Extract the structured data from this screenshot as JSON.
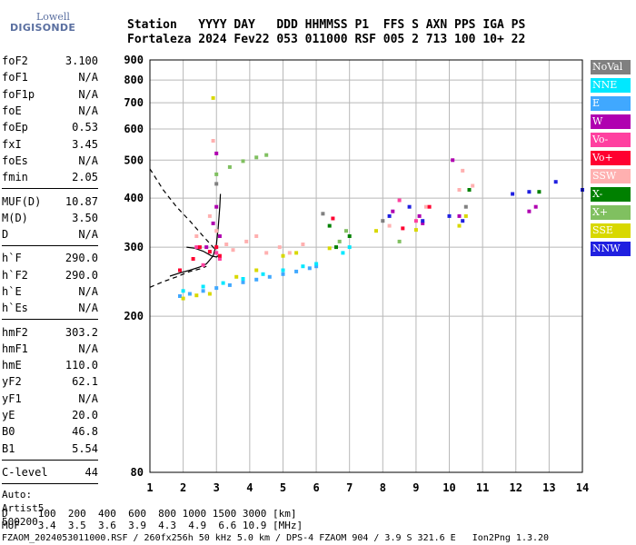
{
  "logo": {
    "line1": "Lowell",
    "line2": "DIGISONDE"
  },
  "header": {
    "labels": "Station   YYYY DAY   DDD HHMMSS P1  FFS S AXN PPS IGA PS",
    "values": "Fortaleza 2024 Fev22 053 011000 RSF 005 2 713 100 10+ 22"
  },
  "params": {
    "group1": [
      {
        "name": "foF2",
        "value": "3.100"
      },
      {
        "name": "foF1",
        "value": "N/A"
      },
      {
        "name": "foF1p",
        "value": "N/A"
      },
      {
        "name": "foE",
        "value": "N/A"
      },
      {
        "name": "foEp",
        "value": "0.53"
      },
      {
        "name": "fxI",
        "value": "3.45"
      },
      {
        "name": "foEs",
        "value": "N/A"
      },
      {
        "name": "fmin",
        "value": "2.05"
      }
    ],
    "group2": [
      {
        "name": "MUF(D)",
        "value": "10.87"
      },
      {
        "name": "M(D)",
        "value": "3.50"
      },
      {
        "name": "D",
        "value": "N/A"
      }
    ],
    "group3": [
      {
        "name": "h`F",
        "value": "290.0"
      },
      {
        "name": "h`F2",
        "value": "290.0"
      },
      {
        "name": "h`E",
        "value": "N/A"
      },
      {
        "name": "h`Es",
        "value": "N/A"
      }
    ],
    "group4": [
      {
        "name": "hmF2",
        "value": "303.2"
      },
      {
        "name": "hmF1",
        "value": "N/A"
      },
      {
        "name": "hmE",
        "value": "110.0"
      },
      {
        "name": "yF2",
        "value": "62.1"
      },
      {
        "name": "yF1",
        "value": "N/A"
      },
      {
        "name": "yE",
        "value": "20.0"
      },
      {
        "name": "B0",
        "value": "46.8"
      },
      {
        "name": "B1",
        "value": "5.54"
      }
    ],
    "clevel": {
      "name": "C-level",
      "value": "44"
    },
    "auto": [
      "Auto:",
      "Artist5",
      "500200"
    ]
  },
  "legend": [
    {
      "label": "NoVal",
      "color": "#808080"
    },
    {
      "label": "NNE",
      "color": "#00e8ff"
    },
    {
      "label": "E",
      "color": "#40a8ff"
    },
    {
      "label": "W",
      "color": "#b000b0"
    },
    {
      "label": "Vo-",
      "color": "#ff40a0"
    },
    {
      "label": "Vo+",
      "color": "#ff0030"
    },
    {
      "label": "SSW",
      "color": "#ffb0b0"
    },
    {
      "label": "X-",
      "color": "#008000"
    },
    {
      "label": "X+",
      "color": "#80c060"
    },
    {
      "label": "SSE",
      "color": "#d8d800"
    },
    {
      "label": "NNW",
      "color": "#2020e0"
    }
  ],
  "bottom": {
    "line1": "D     100  200  400  600  800 1000 1500 3000 [km]",
    "line2": "MUF   3.4  3.5  3.6  3.9  4.3  4.9  6.6 10.9 [MHz]",
    "line3": "FZAOM_2024053011000.RSF / 260fx256h 50 kHz 5.0 km / DPS-4 FZAOM 904 / 3.9 S 321.6 E   Ion2Png 1.3.20"
  },
  "chart_data": {
    "type": "scatter",
    "xlim": [
      1,
      14
    ],
    "ylim": [
      80,
      900
    ],
    "x_ticks": [
      1,
      2,
      3,
      4,
      5,
      6,
      7,
      8,
      9,
      10,
      11,
      12,
      13,
      14
    ],
    "y_ticks": [
      80,
      200,
      300,
      400,
      500,
      600,
      700,
      800,
      900
    ],
    "y_scale": "log",
    "grid": true,
    "legend_position": "right",
    "series": [
      {
        "key": "E",
        "points": [
          [
            1.9,
            225
          ],
          [
            2.2,
            228
          ],
          [
            2.6,
            232
          ],
          [
            3.0,
            236
          ],
          [
            3.4,
            240
          ],
          [
            3.8,
            244
          ],
          [
            4.2,
            248
          ],
          [
            4.6,
            252
          ],
          [
            5.0,
            256
          ],
          [
            5.4,
            260
          ],
          [
            5.8,
            265
          ],
          [
            6.0,
            268
          ]
        ]
      },
      {
        "key": "NNE",
        "points": [
          [
            2.0,
            232
          ],
          [
            2.6,
            238
          ],
          [
            3.2,
            243
          ],
          [
            3.8,
            249
          ],
          [
            4.4,
            256
          ],
          [
            5.0,
            262
          ],
          [
            5.6,
            268
          ],
          [
            6.0,
            272
          ],
          [
            6.8,
            290
          ],
          [
            7.0,
            300
          ]
        ]
      },
      {
        "key": "SSE",
        "points": [
          [
            2.0,
            222
          ],
          [
            2.4,
            226
          ],
          [
            2.8,
            228
          ],
          [
            3.6,
            252
          ],
          [
            4.2,
            262
          ],
          [
            5.0,
            285
          ],
          [
            5.4,
            290
          ],
          [
            6.4,
            298
          ],
          [
            7.8,
            330
          ],
          [
            9.0,
            332
          ],
          [
            10.3,
            340
          ],
          [
            10.5,
            360
          ]
        ]
      },
      {
        "key": "SSW",
        "points": [
          [
            2.4,
            320
          ],
          [
            2.8,
            360
          ],
          [
            3.0,
            330
          ],
          [
            3.3,
            305
          ],
          [
            3.5,
            295
          ],
          [
            3.9,
            310
          ],
          [
            4.2,
            320
          ],
          [
            4.5,
            290
          ],
          [
            4.9,
            300
          ],
          [
            5.2,
            290
          ],
          [
            5.6,
            305
          ],
          [
            8.2,
            340
          ],
          [
            9.3,
            380
          ],
          [
            10.3,
            420
          ],
          [
            10.7,
            430
          ],
          [
            10.4,
            470
          ]
        ]
      },
      {
        "key": "W",
        "points": [
          [
            2.7,
            300
          ],
          [
            2.9,
            345
          ],
          [
            3.0,
            380
          ],
          [
            3.1,
            320
          ],
          [
            3.0,
            520
          ],
          [
            8.3,
            370
          ],
          [
            9.1,
            360
          ],
          [
            9.2,
            345
          ],
          [
            10.1,
            500
          ],
          [
            10.3,
            360
          ],
          [
            12.4,
            370
          ],
          [
            12.6,
            380
          ]
        ]
      },
      {
        "key": "Vo-",
        "points": [
          [
            2.4,
            300
          ],
          [
            2.6,
            270
          ],
          [
            3.0,
            290
          ],
          [
            3.1,
            280
          ],
          [
            8.5,
            395
          ],
          [
            9.0,
            350
          ]
        ]
      },
      {
        "key": "Vo+",
        "points": [
          [
            1.9,
            262
          ],
          [
            2.3,
            280
          ],
          [
            2.5,
            300
          ],
          [
            2.8,
            292
          ],
          [
            3.0,
            300
          ],
          [
            3.1,
            285
          ],
          [
            6.5,
            355
          ],
          [
            8.6,
            335
          ],
          [
            9.4,
            380
          ]
        ]
      },
      {
        "key": "NNW",
        "points": [
          [
            8.2,
            360
          ],
          [
            8.8,
            380
          ],
          [
            9.2,
            350
          ],
          [
            10.4,
            350
          ],
          [
            10.0,
            360
          ],
          [
            11.9,
            410
          ],
          [
            12.4,
            415
          ],
          [
            13.2,
            440
          ],
          [
            14.0,
            420
          ]
        ]
      },
      {
        "key": "X+",
        "points": [
          [
            3.0,
            460
          ],
          [
            3.4,
            480
          ],
          [
            3.8,
            497
          ],
          [
            4.2,
            508
          ],
          [
            4.5,
            515
          ],
          [
            6.7,
            310
          ],
          [
            6.9,
            330
          ],
          [
            8.5,
            310
          ]
        ]
      },
      {
        "key": "X-",
        "points": [
          [
            6.4,
            340
          ],
          [
            6.6,
            300
          ],
          [
            7.0,
            320
          ],
          [
            10.6,
            420
          ],
          [
            12.7,
            415
          ]
        ]
      },
      {
        "key": "NoVal",
        "points": [
          [
            3.0,
            435
          ],
          [
            6.2,
            365
          ],
          [
            8.0,
            350
          ],
          [
            10.5,
            380
          ]
        ]
      }
    ],
    "extra_points": [
      {
        "key": "SSE",
        "points": [
          [
            2.9,
            720
          ]
        ]
      },
      {
        "key": "SSW",
        "points": [
          [
            2.9,
            560
          ]
        ]
      }
    ],
    "curves": [
      {
        "style": "dashed",
        "points": [
          [
            1.0,
            475
          ],
          [
            1.4,
            420
          ],
          [
            1.8,
            380
          ],
          [
            2.2,
            350
          ],
          [
            2.6,
            320
          ],
          [
            2.9,
            300
          ],
          [
            3.0,
            292
          ]
        ]
      },
      {
        "style": "dashed",
        "points": [
          [
            1.0,
            237
          ],
          [
            1.4,
            245
          ],
          [
            1.8,
            252
          ],
          [
            2.2,
            260
          ],
          [
            2.5,
            264
          ],
          [
            2.7,
            268
          ]
        ]
      },
      {
        "style": "solid",
        "points": [
          [
            1.6,
            253
          ],
          [
            1.9,
            258
          ],
          [
            2.2,
            262
          ],
          [
            2.5,
            267
          ],
          [
            2.7,
            272
          ],
          [
            2.9,
            285
          ],
          [
            3.0,
            305
          ],
          [
            3.05,
            335
          ],
          [
            3.1,
            380
          ],
          [
            3.12,
            410
          ]
        ]
      },
      {
        "style": "solid",
        "points": [
          [
            2.1,
            300
          ],
          [
            2.35,
            298
          ],
          [
            2.6,
            293
          ],
          [
            2.85,
            285
          ],
          [
            3.0,
            283
          ],
          [
            3.1,
            287
          ]
        ]
      }
    ]
  }
}
